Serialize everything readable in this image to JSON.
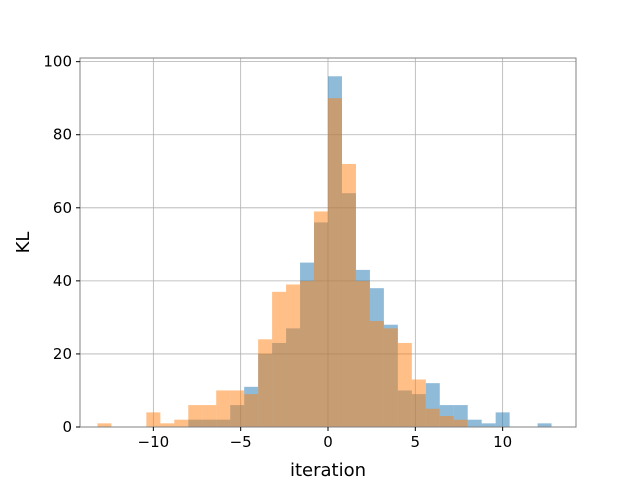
{
  "chart_data": {
    "type": "bar",
    "title": "",
    "xlabel": "iteration",
    "ylabel": "KL",
    "xlim": [
      -14.2,
      14.2
    ],
    "ylim": [
      0,
      101
    ],
    "xticks": [
      -10,
      -5,
      0,
      5,
      10
    ],
    "yticks": [
      0,
      20,
      40,
      60,
      80,
      100
    ],
    "xtick_labels": [
      "−10",
      "−5",
      "0",
      "5",
      "10"
    ],
    "ytick_labels": [
      "0",
      "20",
      "40",
      "60",
      "80",
      "100"
    ],
    "grid": true,
    "bin_width": 0.8,
    "series": [
      {
        "color": "#1f77b4",
        "opacity": 0.5,
        "bins": [
          [
            -8.0,
            2
          ],
          [
            -7.2,
            2
          ],
          [
            -6.4,
            2
          ],
          [
            -5.6,
            6
          ],
          [
            -4.8,
            11
          ],
          [
            -4.0,
            20
          ],
          [
            -3.2,
            23
          ],
          [
            -2.4,
            27
          ],
          [
            -1.6,
            45
          ],
          [
            -0.8,
            56
          ],
          [
            0.0,
            96
          ],
          [
            0.8,
            64
          ],
          [
            1.6,
            43
          ],
          [
            2.4,
            38
          ],
          [
            3.2,
            28
          ],
          [
            4.0,
            10
          ],
          [
            4.8,
            9
          ],
          [
            5.6,
            12
          ],
          [
            6.4,
            6
          ],
          [
            7.2,
            6
          ],
          [
            8.0,
            2
          ],
          [
            8.8,
            1
          ],
          [
            9.6,
            4
          ],
          [
            12.0,
            1
          ]
        ]
      },
      {
        "color": "#ff7f0e",
        "opacity": 0.5,
        "bins": [
          [
            -13.2,
            1
          ],
          [
            -10.4,
            4
          ],
          [
            -9.6,
            1
          ],
          [
            -8.8,
            2
          ],
          [
            -8.0,
            6
          ],
          [
            -7.2,
            6
          ],
          [
            -6.4,
            10
          ],
          [
            -5.6,
            10
          ],
          [
            -4.8,
            9
          ],
          [
            -4.0,
            24
          ],
          [
            -3.2,
            37
          ],
          [
            -2.4,
            39
          ],
          [
            -1.6,
            40
          ],
          [
            -0.8,
            59
          ],
          [
            0.0,
            90
          ],
          [
            0.8,
            72
          ],
          [
            1.6,
            40
          ],
          [
            2.4,
            29
          ],
          [
            3.2,
            27
          ],
          [
            4.0,
            23
          ],
          [
            4.8,
            13
          ],
          [
            5.6,
            5
          ],
          [
            6.4,
            3
          ],
          [
            7.2,
            2
          ]
        ]
      }
    ]
  }
}
